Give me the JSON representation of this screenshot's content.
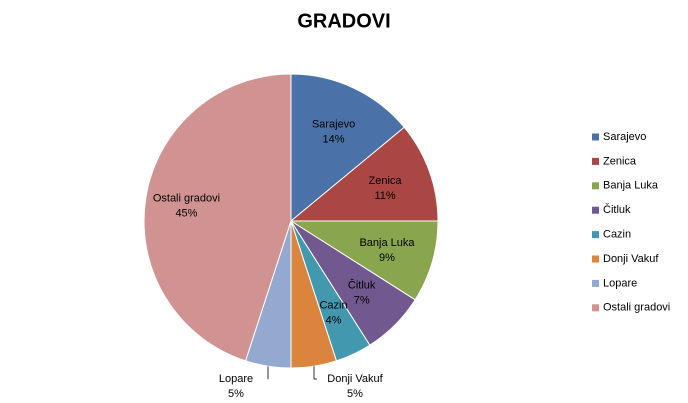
{
  "chart_data": {
    "type": "pie",
    "title": "GRADOVI",
    "categories": [
      "Sarajevo",
      "Zenica",
      "Banja Luka",
      "Čitluk",
      "Cazin",
      "Donji Vakuf",
      "Lopare",
      "Ostali gradovi"
    ],
    "values": [
      14,
      11,
      9,
      7,
      4,
      5,
      5,
      45
    ],
    "value_labels": [
      "14%",
      "11%",
      "9%",
      "7%",
      "4%",
      "5%",
      "5%",
      "45%"
    ],
    "colors": [
      "#4a72a8",
      "#aa4643",
      "#89a54e",
      "#71588f",
      "#4198af",
      "#db843d",
      "#93a9cf",
      "#d19392"
    ],
    "legend": "right"
  }
}
